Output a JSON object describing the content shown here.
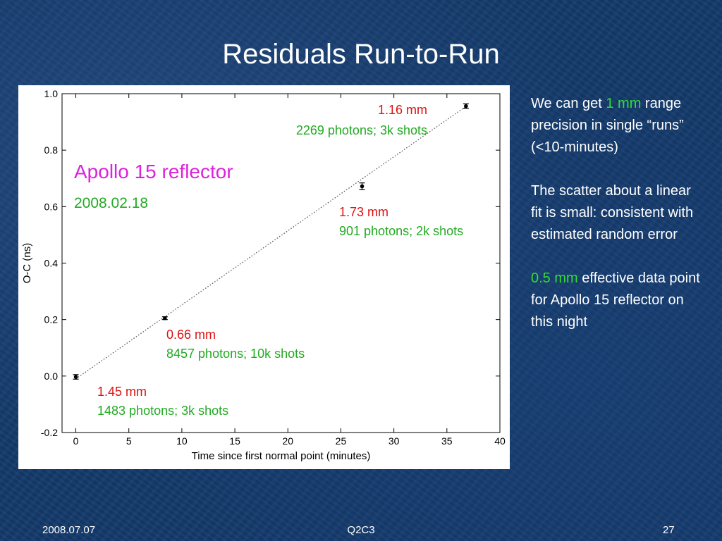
{
  "slide": {
    "title": "Residuals Run-to-Run",
    "footer_left": "2008.07.07",
    "footer_center": "Q2C3",
    "footer_right": "27"
  },
  "side_text": {
    "p1_pre": "We can get ",
    "p1_highlight": "1 mm",
    "p1_post": " range precision in single  “runs” (<10-minutes)",
    "p2": "The scatter about a linear fit is small: consistent with estimated random error",
    "p3_highlight": "0.5 mm",
    "p3_post": " effective data point for Apollo 15 reflector on this night"
  },
  "colors": {
    "background": "#143a6b",
    "title_text": "#ffffff",
    "precision_label": "#dd1111",
    "photon_label": "#22aa22",
    "reflector_label": "#dd22dd",
    "highlight_green": "#33dd33",
    "fit_line": "#555555",
    "point": "#000000"
  },
  "chart_data": {
    "type": "scatter",
    "title": "",
    "xlabel": "Time since first normal point (minutes)",
    "ylabel": "O-C (ns)",
    "xlim": [
      -1.3,
      40
    ],
    "ylim": [
      -0.2,
      1.0
    ],
    "xticks": [
      0,
      5,
      10,
      15,
      20,
      25,
      30,
      35,
      40
    ],
    "yticks": [
      -0.2,
      0.0,
      0.2,
      0.4,
      0.6,
      0.8,
      1.0
    ],
    "ytick_labels": [
      "-0.2",
      "0.0",
      "0.2",
      "0.4",
      "0.6",
      "0.8",
      "1.0"
    ],
    "grid": false,
    "fit_line": {
      "x": [
        0,
        36.8
      ],
      "y": [
        -0.01,
        0.955
      ],
      "style": "dotted"
    },
    "points": [
      {
        "x": 0.0,
        "y": -0.003,
        "err": 0.008,
        "precision": "1.45 mm",
        "photons": "1483 photons; 3k shots"
      },
      {
        "x": 8.4,
        "y": 0.205,
        "err": 0.005,
        "precision": "0.66 mm",
        "photons": "8457 photons; 10k shots"
      },
      {
        "x": 27.0,
        "y": 0.672,
        "err": 0.012,
        "precision": "1.73 mm",
        "photons": "901 photons; 2k shots"
      },
      {
        "x": 36.8,
        "y": 0.956,
        "err": 0.008,
        "precision": "1.16 mm",
        "photons": "2269 photons; 3k shots"
      }
    ],
    "annotation_title": "Apollo 15 reflector",
    "annotation_date": "2008.02.18"
  }
}
